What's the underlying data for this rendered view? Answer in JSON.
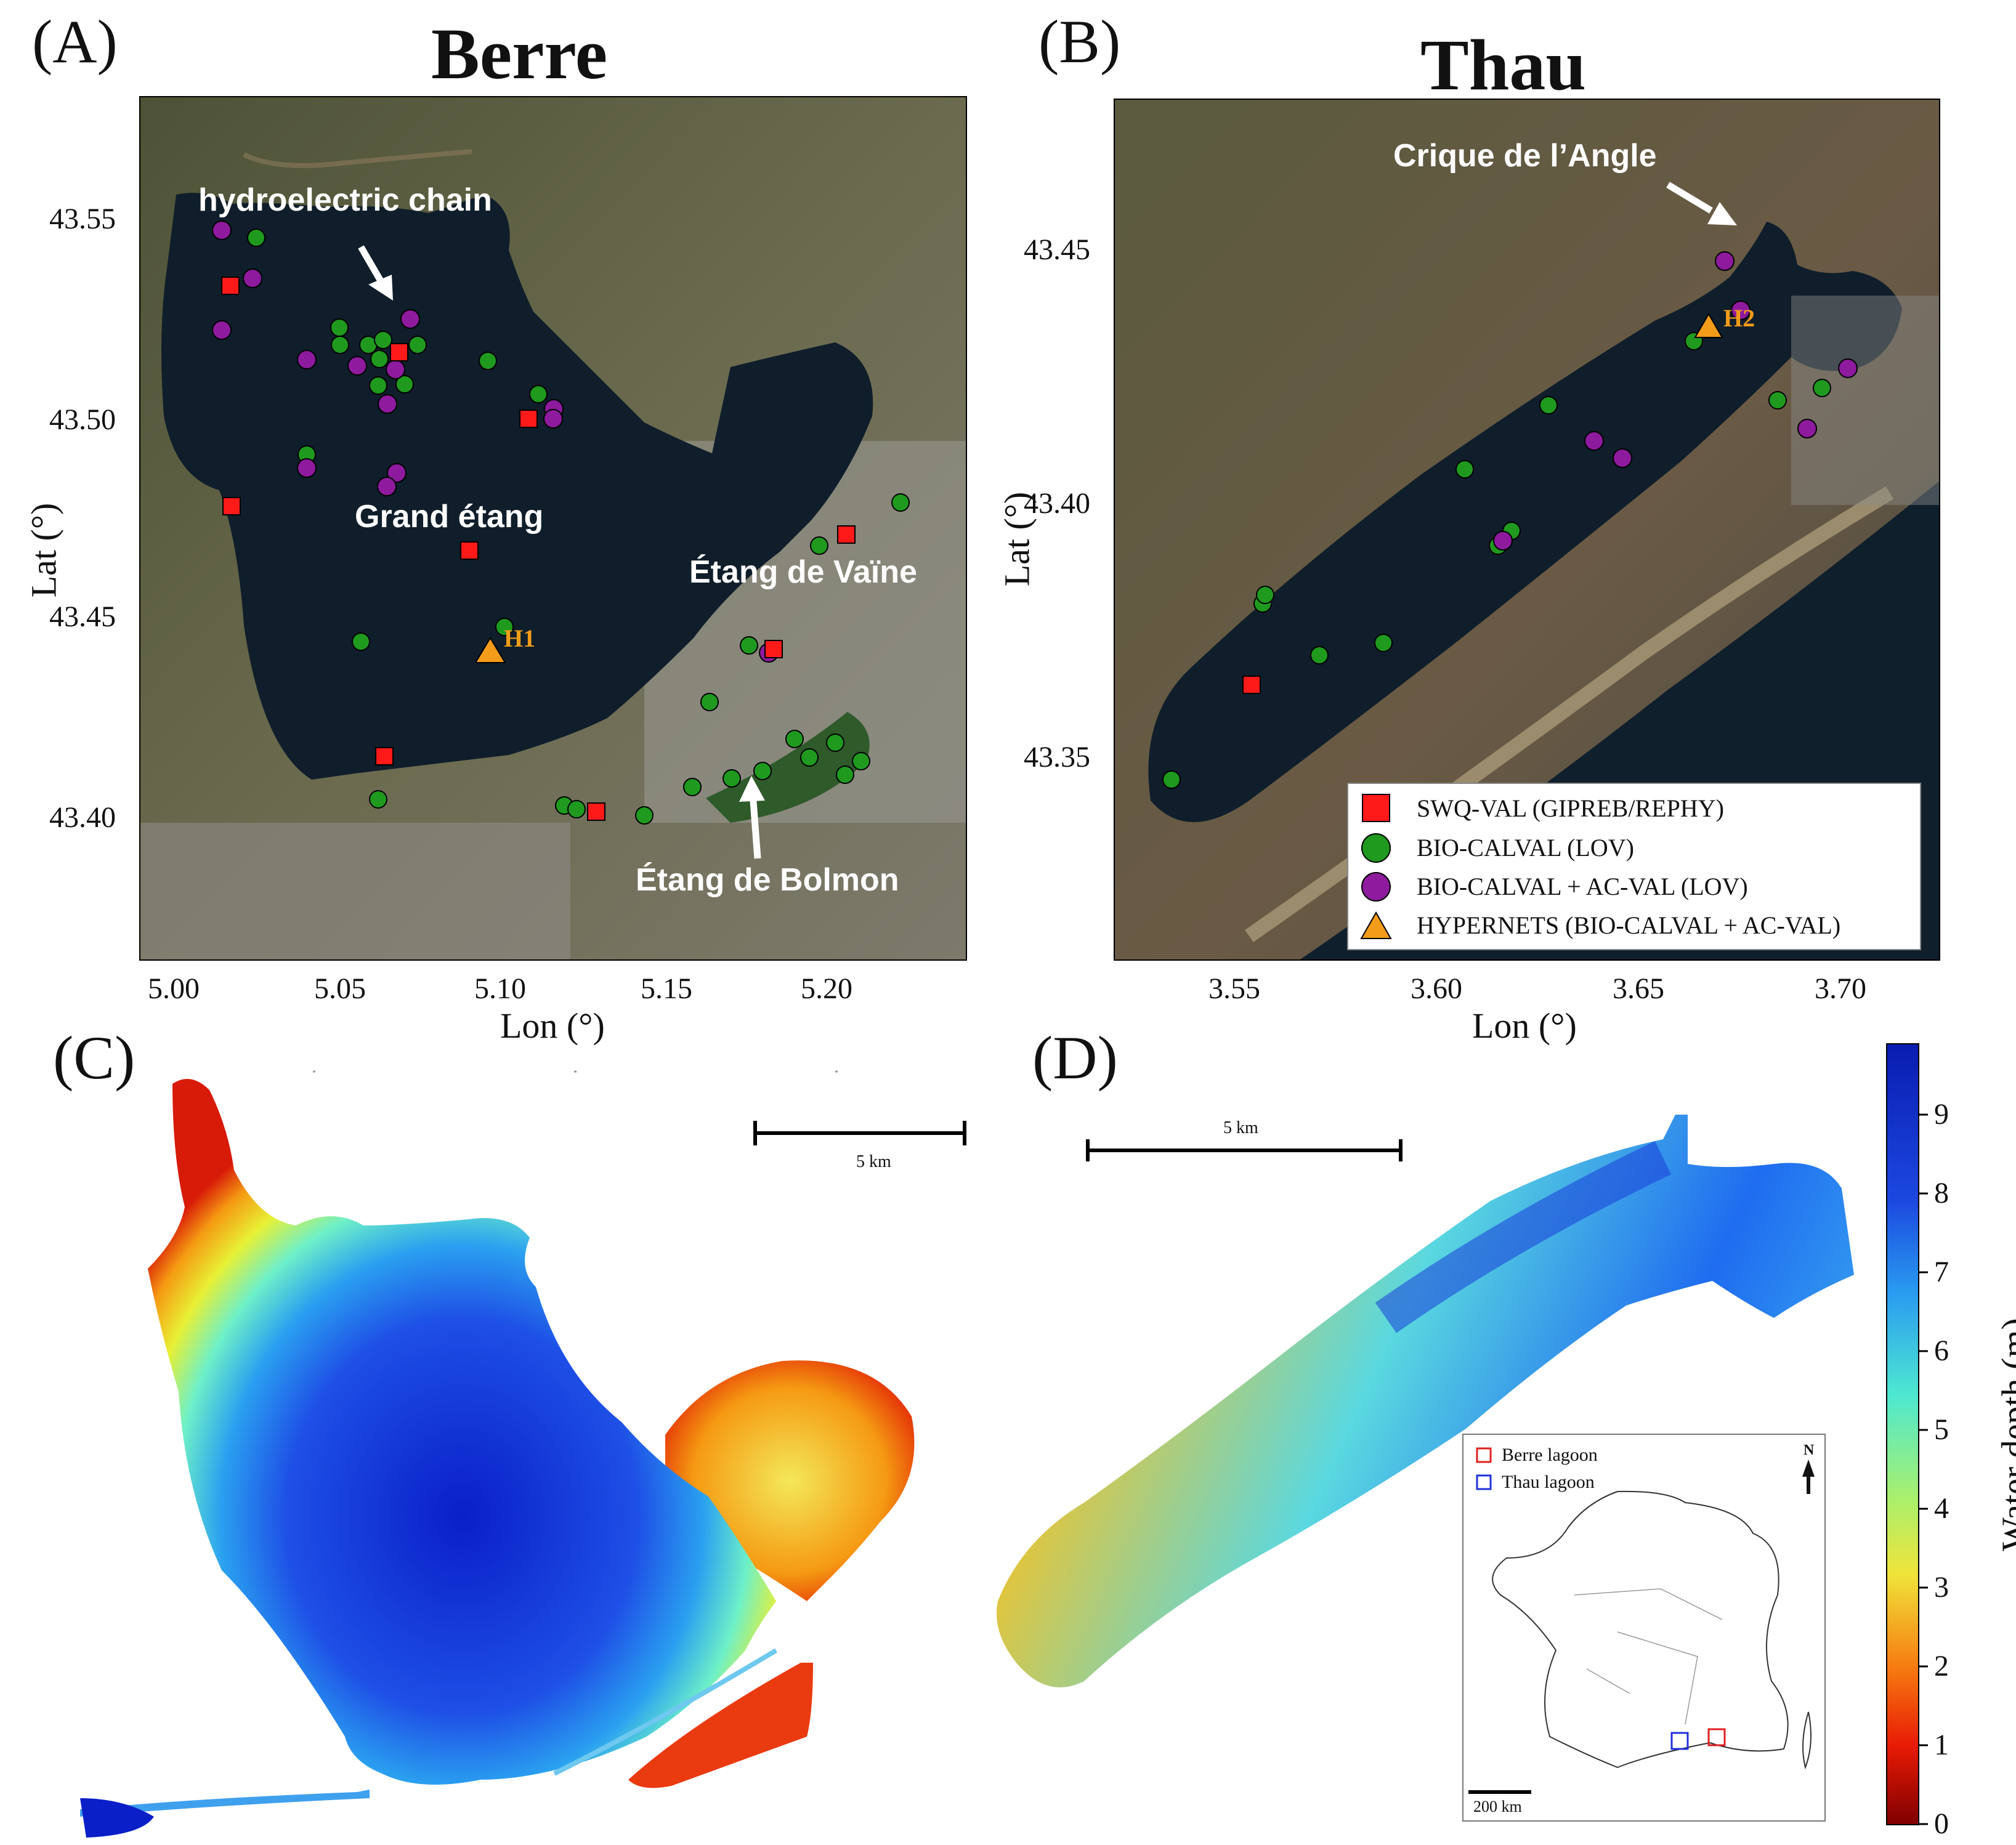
{
  "panel_a": {
    "label": "(A)",
    "title": "Berre",
    "x_axis": {
      "label": "Lon (°)",
      "ticks": [
        "5.00",
        "5.05",
        "5.10",
        "5.15",
        "5.20"
      ]
    },
    "y_axis": {
      "label": "Lat (°)",
      "ticks": [
        "43.55",
        "43.50",
        "43.45",
        "43.40"
      ]
    },
    "annotations": {
      "hydroelectric": "hydroelectric chain",
      "grand_etang": "Grand étang",
      "vaine": "Étang de Vaïne",
      "bolmon": "Étang de Bolmon",
      "h1": "H1"
    }
  },
  "panel_b": {
    "label": "(B)",
    "title": "Thau",
    "x_axis": {
      "label": "Lon (°)",
      "ticks": [
        "3.55",
        "3.60",
        "3.65",
        "3.70"
      ]
    },
    "y_axis": {
      "label": "Lat (°)",
      "ticks": [
        "43.45",
        "43.40",
        "43.35"
      ]
    },
    "annotations": {
      "crique": "Crique de l’Angle",
      "h2": "H2"
    },
    "legend": {
      "swq": "SWQ-VAL (GIPREB/REPHY)",
      "bio": "BIO-CALVAL (LOV)",
      "bioac": "BIO-CALVAL + AC-VAL (LOV)",
      "hyper": "HYPERNETS (BIO-CALVAL + AC-VAL)"
    }
  },
  "panel_c": {
    "label": "(C)",
    "scale_bar": "5 km"
  },
  "panel_d": {
    "label": "(D)",
    "scale_bar": "5 km",
    "inset": {
      "berre": "Berre lagoon",
      "thau": "Thau lagoon",
      "north": "N",
      "scale": "200 km"
    }
  },
  "colorbar": {
    "label": "Water depth (m)",
    "ticks": [
      "0",
      "1",
      "2",
      "3",
      "4",
      "5",
      "6",
      "7",
      "8",
      "9"
    ]
  },
  "colors": {
    "swq": "#ff1a1a",
    "bio": "#1f9a1f",
    "bioac": "#8e1a9e",
    "hyper": "#f39c1a",
    "water": "#0f1e2a",
    "land": "#55553d"
  }
}
